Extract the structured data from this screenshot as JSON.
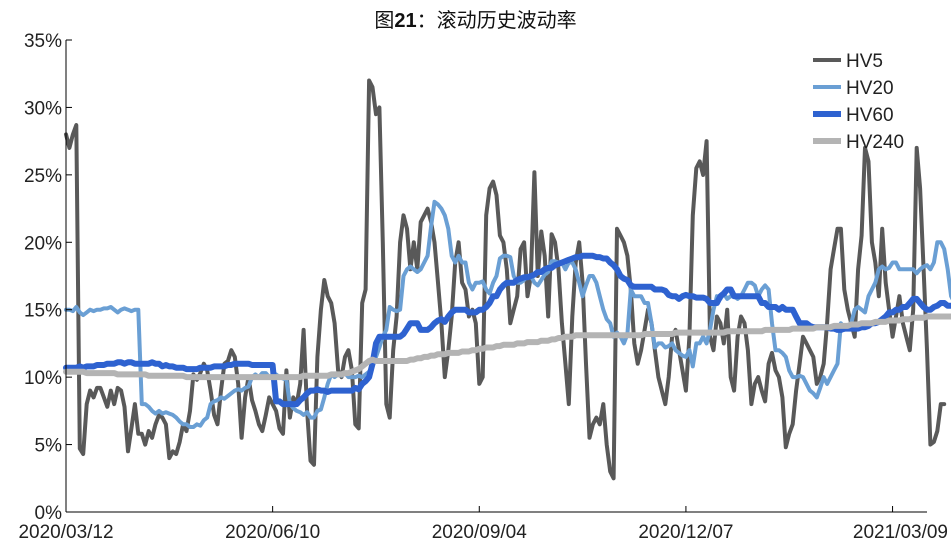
{
  "chart_data": {
    "type": "line",
    "title_prefix": "图",
    "title_number": "21",
    "title_suffix": "：滚动历史波动率",
    "xlabel": "",
    "ylabel": "",
    "ylim": [
      0,
      0.35
    ],
    "y_ticks": [
      0,
      0.05,
      0.1,
      0.15,
      0.2,
      0.25,
      0.3,
      0.35
    ],
    "y_tick_labels": [
      "0%",
      "5%",
      "10%",
      "15%",
      "20%",
      "25%",
      "30%",
      "35%"
    ],
    "x_tick_labels": [
      "2020/03/12",
      "2020/06/10",
      "2020/09/04",
      "2020/12/07",
      "2021/03/09"
    ],
    "x_tick_index": [
      0,
      60,
      120,
      180,
      240
    ],
    "x_range": [
      0,
      250
    ],
    "grid": false,
    "legend_position": "top-right",
    "series": [
      {
        "name": "HV5",
        "color": "#595959",
        "width": 4,
        "values": [
          0.28,
          0.27,
          0.28,
          0.287,
          0.047,
          0.043,
          0.08,
          0.09,
          0.085,
          0.092,
          0.092,
          0.085,
          0.078,
          0.09,
          0.08,
          0.092,
          0.09,
          0.078,
          0.045,
          0.062,
          0.08,
          0.058,
          0.058,
          0.05,
          0.06,
          0.055,
          0.065,
          0.072,
          0.07,
          0.065,
          0.04,
          0.045,
          0.043,
          0.052,
          0.065,
          0.06,
          0.075,
          0.102,
          0.098,
          0.103,
          0.11,
          0.105,
          0.09,
          0.072,
          0.065,
          0.09,
          0.11,
          0.112,
          0.12,
          0.115,
          0.095,
          0.055,
          0.085,
          0.1,
          0.083,
          0.075,
          0.065,
          0.06,
          0.072,
          0.085,
          0.08,
          0.075,
          0.062,
          0.058,
          0.105,
          0.07,
          0.085,
          0.08,
          0.095,
          0.135,
          0.075,
          0.038,
          0.035,
          0.115,
          0.15,
          0.172,
          0.16,
          0.155,
          0.14,
          0.105,
          0.1,
          0.115,
          0.12,
          0.105,
          0.065,
          0.062,
          0.155,
          0.165,
          0.32,
          0.315,
          0.295,
          0.3,
          0.2,
          0.08,
          0.07,
          0.12,
          0.145,
          0.2,
          0.22,
          0.21,
          0.18,
          0.2,
          0.18,
          0.215,
          0.22,
          0.225,
          0.215,
          0.2,
          0.17,
          0.14,
          0.1,
          0.12,
          0.145,
          0.185,
          0.2,
          0.17,
          0.165,
          0.145,
          0.15,
          0.14,
          0.095,
          0.1,
          0.22,
          0.24,
          0.245,
          0.235,
          0.205,
          0.2,
          0.18,
          0.14,
          0.15,
          0.16,
          0.195,
          0.2,
          0.16,
          0.175,
          0.252,
          0.175,
          0.208,
          0.19,
          0.145,
          0.206,
          0.2,
          0.18,
          0.14,
          0.11,
          0.08,
          0.145,
          0.185,
          0.2,
          0.17,
          0.11,
          0.055,
          0.065,
          0.07,
          0.065,
          0.08,
          0.05,
          0.03,
          0.025,
          0.21,
          0.205,
          0.2,
          0.19,
          0.165,
          0.125,
          0.11,
          0.12,
          0.135,
          0.15,
          0.14,
          0.12,
          0.1,
          0.09,
          0.08,
          0.1,
          0.13,
          0.135,
          0.12,
          0.105,
          0.09,
          0.13,
          0.22,
          0.255,
          0.26,
          0.25,
          0.275,
          0.13,
          0.12,
          0.145,
          0.14,
          0.125,
          0.15,
          0.1,
          0.09,
          0.13,
          0.145,
          0.14,
          0.12,
          0.08,
          0.095,
          0.1,
          0.09,
          0.082,
          0.11,
          0.118,
          0.105,
          0.1,
          0.085,
          0.048,
          0.058,
          0.065,
          0.09,
          0.11,
          0.13,
          0.125,
          0.12,
          0.115,
          0.095,
          0.1,
          0.11,
          0.14,
          0.18,
          0.195,
          0.21,
          0.21,
          0.165,
          0.15,
          0.14,
          0.13,
          0.18,
          0.205,
          0.27,
          0.26,
          0.2,
          0.185,
          0.16,
          0.21,
          0.17,
          0.15,
          0.13,
          0.145,
          0.16,
          0.14,
          0.13,
          0.12,
          0.15,
          0.27,
          0.24,
          0.18,
          0.12,
          0.05,
          0.052,
          0.06,
          0.08,
          0.08
        ]
      },
      {
        "name": "HV20",
        "color": "#6a9fd4",
        "width": 4,
        "values": [
          0.15,
          0.15,
          0.149,
          0.152,
          0.148,
          0.146,
          0.148,
          0.15,
          0.149,
          0.15,
          0.15,
          0.151,
          0.151,
          0.152,
          0.15,
          0.148,
          0.15,
          0.151,
          0.15,
          0.149,
          0.15,
          0.15,
          0.08,
          0.08,
          0.078,
          0.075,
          0.073,
          0.075,
          0.073,
          0.074,
          0.073,
          0.072,
          0.07,
          0.067,
          0.065,
          0.065,
          0.063,
          0.063,
          0.065,
          0.064,
          0.068,
          0.07,
          0.08,
          0.082,
          0.083,
          0.085,
          0.084,
          0.086,
          0.088,
          0.09,
          0.091,
          0.09,
          0.092,
          0.093,
          0.1,
          0.102,
          0.1,
          0.103,
          0.103,
          0.1,
          0.1,
          0.102,
          0.1,
          0.099,
          0.098,
          0.08,
          0.077,
          0.075,
          0.074,
          0.072,
          0.074,
          0.07,
          0.07,
          0.075,
          0.076,
          0.085,
          0.095,
          0.102,
          0.1,
          0.102,
          0.101,
          0.103,
          0.1,
          0.1,
          0.1,
          0.101,
          0.1,
          0.102,
          0.104,
          0.108,
          0.115,
          0.122,
          0.13,
          0.135,
          0.152,
          0.15,
          0.149,
          0.15,
          0.175,
          0.18,
          0.182,
          0.18,
          0.178,
          0.18,
          0.185,
          0.19,
          0.212,
          0.23,
          0.228,
          0.225,
          0.22,
          0.21,
          0.19,
          0.185,
          0.19,
          0.185,
          0.185,
          0.17,
          0.165,
          0.17,
          0.17,
          0.171,
          0.165,
          0.162,
          0.17,
          0.175,
          0.188,
          0.19,
          0.19,
          0.189,
          0.175,
          0.17,
          0.17,
          0.172,
          0.175,
          0.175,
          0.17,
          0.168,
          0.172,
          0.176,
          0.178,
          0.186,
          0.186,
          0.185,
          0.185,
          0.18,
          0.185,
          0.185,
          0.18,
          0.17,
          0.16,
          0.168,
          0.175,
          0.175,
          0.17,
          0.16,
          0.15,
          0.143,
          0.14,
          0.13,
          0.133,
          0.13,
          0.125,
          0.132,
          0.165,
          0.16,
          0.16,
          0.16,
          0.155,
          0.155,
          0.14,
          0.122,
          0.125,
          0.125,
          0.122,
          0.123,
          0.125,
          0.12,
          0.118,
          0.116,
          0.115,
          0.12,
          0.108,
          0.125,
          0.125,
          0.13,
          0.125,
          0.135,
          0.15,
          0.16,
          0.158,
          0.162,
          0.158,
          0.16,
          0.16,
          0.158,
          0.16,
          0.165,
          0.17,
          0.17,
          0.168,
          0.16,
          0.165,
          0.168,
          0.165,
          0.14,
          0.12,
          0.12,
          0.118,
          0.115,
          0.105,
          0.1,
          0.1,
          0.101,
          0.1,
          0.095,
          0.09,
          0.088,
          0.085,
          0.092,
          0.1,
          0.095,
          0.1,
          0.105,
          0.11,
          0.14,
          0.135,
          0.138,
          0.14,
          0.15,
          0.152,
          0.15,
          0.148,
          0.16,
          0.165,
          0.17,
          0.18,
          0.182,
          0.18,
          0.181,
          0.185,
          0.185,
          0.18,
          0.18,
          0.18,
          0.18,
          0.18,
          0.177,
          0.18,
          0.182,
          0.183,
          0.18,
          0.185,
          0.2,
          0.2,
          0.195,
          0.18,
          0.16,
          0.155,
          0.15,
          0.155,
          0.15
        ]
      },
      {
        "name": "HV60",
        "color": "#2e62d0",
        "width": 6,
        "values": [
          0.107,
          0.107,
          0.107,
          0.107,
          0.108,
          0.107,
          0.108,
          0.108,
          0.108,
          0.109,
          0.109,
          0.109,
          0.11,
          0.11,
          0.11,
          0.111,
          0.111,
          0.11,
          0.111,
          0.111,
          0.11,
          0.11,
          0.11,
          0.11,
          0.11,
          0.111,
          0.11,
          0.11,
          0.108,
          0.109,
          0.108,
          0.108,
          0.107,
          0.107,
          0.107,
          0.106,
          0.106,
          0.106,
          0.106,
          0.107,
          0.107,
          0.107,
          0.107,
          0.108,
          0.108,
          0.108,
          0.108,
          0.109,
          0.109,
          0.11,
          0.11,
          0.11,
          0.11,
          0.11,
          0.109,
          0.109,
          0.109,
          0.109,
          0.109,
          0.109,
          0.109,
          0.082,
          0.082,
          0.08,
          0.08,
          0.08,
          0.08,
          0.08,
          0.083,
          0.085,
          0.088,
          0.09,
          0.09,
          0.091,
          0.09,
          0.09,
          0.089,
          0.09,
          0.09,
          0.09,
          0.09,
          0.09,
          0.09,
          0.09,
          0.092,
          0.091,
          0.095,
          0.097,
          0.1,
          0.11,
          0.125,
          0.13,
          0.13,
          0.13,
          0.13,
          0.13,
          0.13,
          0.13,
          0.132,
          0.136,
          0.14,
          0.14,
          0.14,
          0.135,
          0.135,
          0.135,
          0.137,
          0.14,
          0.142,
          0.143,
          0.141,
          0.145,
          0.148,
          0.15,
          0.15,
          0.15,
          0.15,
          0.148,
          0.148,
          0.148,
          0.15,
          0.15,
          0.152,
          0.155,
          0.16,
          0.16,
          0.165,
          0.168,
          0.17,
          0.17,
          0.17,
          0.172,
          0.173,
          0.174,
          0.174,
          0.175,
          0.176,
          0.178,
          0.178,
          0.18,
          0.181,
          0.181,
          0.183,
          0.184,
          0.185,
          0.186,
          0.187,
          0.188,
          0.189,
          0.189,
          0.19,
          0.19,
          0.19,
          0.19,
          0.189,
          0.189,
          0.188,
          0.188,
          0.185,
          0.183,
          0.18,
          0.175,
          0.173,
          0.172,
          0.168,
          0.167,
          0.167,
          0.167,
          0.167,
          0.167,
          0.167,
          0.165,
          0.165,
          0.165,
          0.164,
          0.161,
          0.16,
          0.16,
          0.158,
          0.16,
          0.161,
          0.16,
          0.16,
          0.159,
          0.159,
          0.159,
          0.158,
          0.155,
          0.155,
          0.155,
          0.16,
          0.162,
          0.165,
          0.165,
          0.16,
          0.16,
          0.16,
          0.16,
          0.16,
          0.16,
          0.16,
          0.16,
          0.155,
          0.155,
          0.152,
          0.152,
          0.152,
          0.15,
          0.152,
          0.15,
          0.15,
          0.15,
          0.145,
          0.14,
          0.14,
          0.14,
          0.138,
          0.137,
          0.137,
          0.137,
          0.137,
          0.137,
          0.136,
          0.136,
          0.135,
          0.135,
          0.136,
          0.136,
          0.136,
          0.136,
          0.136,
          0.137,
          0.137,
          0.138,
          0.14,
          0.14,
          0.141,
          0.143,
          0.145,
          0.148,
          0.148,
          0.15,
          0.15,
          0.152,
          0.152,
          0.155,
          0.158,
          0.158,
          0.155,
          0.152,
          0.15,
          0.15,
          0.152,
          0.153,
          0.155,
          0.155,
          0.153,
          0.153,
          0.153,
          0.155,
          0.155,
          0.153,
          0.152,
          0.15,
          0.15,
          0.153,
          0.152
        ]
      },
      {
        "name": "HV240",
        "color": "#b4b4b4",
        "width": 6,
        "values": [
          0.104,
          0.104,
          0.104,
          0.104,
          0.104,
          0.104,
          0.103,
          0.103,
          0.103,
          0.103,
          0.103,
          0.103,
          0.103,
          0.103,
          0.103,
          0.102,
          0.102,
          0.102,
          0.102,
          0.102,
          0.102,
          0.102,
          0.102,
          0.102,
          0.101,
          0.101,
          0.101,
          0.101,
          0.101,
          0.101,
          0.101,
          0.101,
          0.101,
          0.101,
          0.101,
          0.1,
          0.1,
          0.1,
          0.1,
          0.1,
          0.1,
          0.1,
          0.1,
          0.1,
          0.1,
          0.1,
          0.1,
          0.1,
          0.1,
          0.1,
          0.1,
          0.1,
          0.1,
          0.1,
          0.1,
          0.1,
          0.1,
          0.1,
          0.1,
          0.1,
          0.1,
          0.1,
          0.1,
          0.1,
          0.1,
          0.1,
          0.1,
          0.1,
          0.1,
          0.101,
          0.101,
          0.101,
          0.101,
          0.101,
          0.101,
          0.101,
          0.101,
          0.102,
          0.102,
          0.102,
          0.102,
          0.103,
          0.103,
          0.104,
          0.105,
          0.106,
          0.108,
          0.11,
          0.112,
          0.113,
          0.112,
          0.112,
          0.112,
          0.112,
          0.112,
          0.112,
          0.112,
          0.112,
          0.112,
          0.112,
          0.113,
          0.113,
          0.114,
          0.114,
          0.115,
          0.115,
          0.116,
          0.116,
          0.117,
          0.117,
          0.117,
          0.118,
          0.118,
          0.118,
          0.118,
          0.119,
          0.119,
          0.119,
          0.12,
          0.12,
          0.121,
          0.121,
          0.122,
          0.122,
          0.122,
          0.123,
          0.123,
          0.124,
          0.124,
          0.124,
          0.124,
          0.125,
          0.125,
          0.125,
          0.126,
          0.126,
          0.126,
          0.126,
          0.127,
          0.127,
          0.127,
          0.128,
          0.128,
          0.129,
          0.129,
          0.13,
          0.13,
          0.13,
          0.131,
          0.131,
          0.131,
          0.131,
          0.131,
          0.131,
          0.131,
          0.131,
          0.131,
          0.131,
          0.131,
          0.131,
          0.131,
          0.131,
          0.131,
          0.131,
          0.131,
          0.131,
          0.131,
          0.131,
          0.132,
          0.132,
          0.132,
          0.132,
          0.132,
          0.132,
          0.132,
          0.132,
          0.132,
          0.133,
          0.133,
          0.133,
          0.133,
          0.133,
          0.133,
          0.133,
          0.133,
          0.133,
          0.133,
          0.133,
          0.133,
          0.133,
          0.133,
          0.133,
          0.134,
          0.134,
          0.134,
          0.134,
          0.134,
          0.134,
          0.134,
          0.134,
          0.134,
          0.134,
          0.134,
          0.135,
          0.135,
          0.135,
          0.135,
          0.135,
          0.135,
          0.135,
          0.135,
          0.136,
          0.136,
          0.136,
          0.136,
          0.136,
          0.136,
          0.136,
          0.137,
          0.137,
          0.137,
          0.137,
          0.137,
          0.138,
          0.138,
          0.138,
          0.138,
          0.138,
          0.139,
          0.139,
          0.139,
          0.14,
          0.14,
          0.14,
          0.14,
          0.141,
          0.141,
          0.141,
          0.141,
          0.142,
          0.142,
          0.142,
          0.142,
          0.143,
          0.143,
          0.143,
          0.144,
          0.144,
          0.144,
          0.144,
          0.145,
          0.145,
          0.145,
          0.145,
          0.145,
          0.145,
          0.145,
          0.145,
          0.145,
          0.145,
          0.145,
          0.145,
          0.145,
          0.145
        ]
      }
    ]
  }
}
